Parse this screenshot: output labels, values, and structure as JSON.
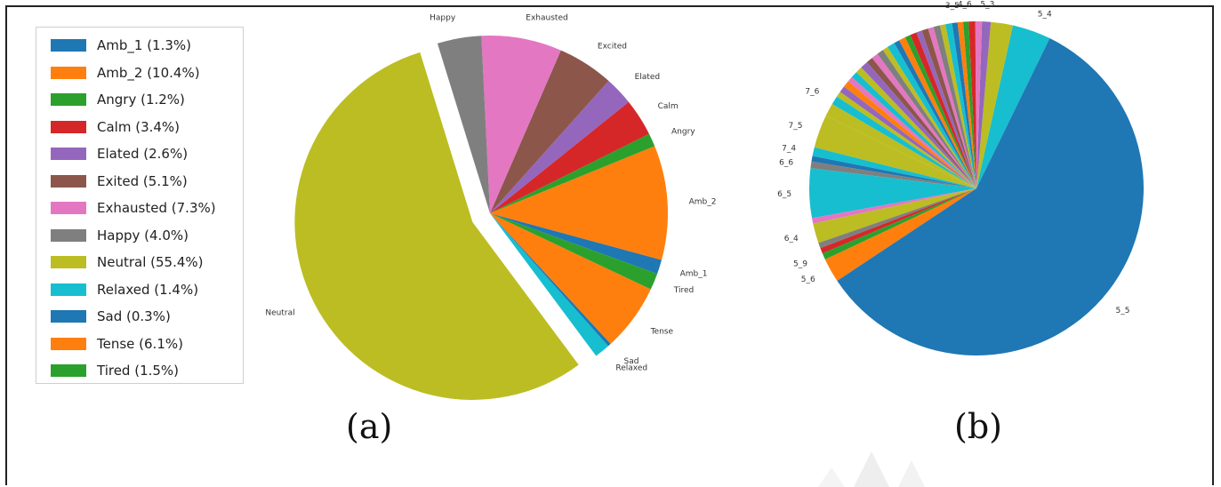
{
  "chart_data": [
    {
      "type": "pie",
      "panel_label": "(a)",
      "slices": [
        {
          "label": "Amb_1",
          "legend": "Amb_1 (1.3%)",
          "value": 1.3,
          "color": "#1f77b4"
        },
        {
          "label": "Amb_2",
          "legend": "Amb_2 (10.4%)",
          "value": 10.4,
          "color": "#ff7f0e"
        },
        {
          "label": "Angry",
          "legend": "Angry (1.2%)",
          "value": 1.2,
          "color": "#2ca02c"
        },
        {
          "label": "Calm",
          "legend": "Calm (3.4%)",
          "value": 3.4,
          "color": "#d62728"
        },
        {
          "label": "Elated",
          "legend": "Elated (2.6%)",
          "value": 2.6,
          "color": "#9467bd"
        },
        {
          "label": "Excited",
          "legend": "Exited (5.1%)",
          "value": 5.1,
          "color": "#8c564b"
        },
        {
          "label": "Exhausted",
          "legend": "Exhausted (7.3%)",
          "value": 7.3,
          "color": "#e377c2"
        },
        {
          "label": "Happy",
          "legend": "Happy (4.0%)",
          "value": 4.0,
          "color": "#7f7f7f"
        },
        {
          "label": "Neutral",
          "legend": "Neutral (55.4%)",
          "value": 55.4,
          "color": "#bcbd22",
          "exploded": true
        },
        {
          "label": "Relaxed",
          "legend": "Relaxed (1.4%)",
          "value": 1.4,
          "color": "#17becf"
        },
        {
          "label": "Sad",
          "legend": "Sad (0.3%)",
          "value": 0.3,
          "color": "#1f77b4"
        },
        {
          "label": "Tense",
          "legend": "Tense (6.1%)",
          "value": 6.1,
          "color": "#ff7f0e"
        },
        {
          "label": "Tired",
          "legend": "Tired (1.5%)",
          "value": 1.5,
          "color": "#2ca02c"
        }
      ],
      "legend_placement": "left"
    },
    {
      "type": "pie",
      "panel_label": "(b)",
      "slices": [
        {
          "label": "5_4",
          "value": 3.5,
          "color": "#17becf"
        },
        {
          "label": "",
          "value": 2.0,
          "color": "#bcbd22"
        },
        {
          "label": "5_3",
          "value": 0.8,
          "color": "#9467bd"
        },
        {
          "label": "",
          "value": 0.6,
          "color": "#e377c2"
        },
        {
          "label": "",
          "value": 0.6,
          "color": "#d62728"
        },
        {
          "label": "4_6",
          "value": 0.5,
          "color": "#2ca02c"
        },
        {
          "label": "",
          "value": 0.5,
          "color": "#ff7f0e"
        },
        {
          "label": "3_5",
          "value": 0.5,
          "color": "#1f77b4"
        },
        {
          "label": "",
          "value": 0.6,
          "color": "#17becf"
        },
        {
          "label": "",
          "value": 0.5,
          "color": "#bcbd22"
        },
        {
          "label": "",
          "value": 0.6,
          "color": "#7f7f7f"
        },
        {
          "label": "",
          "value": 0.5,
          "color": "#e377c2"
        },
        {
          "label": "",
          "value": 0.6,
          "color": "#8c564b"
        },
        {
          "label": "",
          "value": 0.5,
          "color": "#9467bd"
        },
        {
          "label": "",
          "value": 0.6,
          "color": "#d62728"
        },
        {
          "label": "",
          "value": 0.5,
          "color": "#2ca02c"
        },
        {
          "label": "",
          "value": 0.6,
          "color": "#ff7f0e"
        },
        {
          "label": "",
          "value": 0.5,
          "color": "#1f77b4"
        },
        {
          "label": "",
          "value": 0.7,
          "color": "#17becf"
        },
        {
          "label": "",
          "value": 0.5,
          "color": "#bcbd22"
        },
        {
          "label": "",
          "value": 0.6,
          "color": "#7f7f7f"
        },
        {
          "label": "",
          "value": 0.6,
          "color": "#e377c2"
        },
        {
          "label": "",
          "value": 0.6,
          "color": "#8c564b"
        },
        {
          "label": "",
          "value": 0.7,
          "color": "#9467bd"
        },
        {
          "label": "",
          "value": 0.6,
          "color": "#bcbd22"
        },
        {
          "label": "",
          "value": 0.6,
          "color": "#17becf"
        },
        {
          "label": "",
          "value": 0.5,
          "color": "#e377c2"
        },
        {
          "label": "",
          "value": 0.6,
          "color": "#ff7f0e"
        },
        {
          "label": "",
          "value": 0.6,
          "color": "#9467bd"
        },
        {
          "label": "",
          "value": 0.5,
          "color": "#bcbd22"
        },
        {
          "label": "7_6",
          "value": 0.8,
          "color": "#17becf"
        },
        {
          "label": "",
          "value": 1.2,
          "color": "#bcbd22"
        },
        {
          "label": "7_5",
          "value": 3.0,
          "color": "#bcbd22"
        },
        {
          "label": "7_4",
          "value": 0.8,
          "color": "#17becf"
        },
        {
          "label": "",
          "value": 0.5,
          "color": "#1f77b4"
        },
        {
          "label": "6_6",
          "value": 0.6,
          "color": "#7f7f7f"
        },
        {
          "label": "6_5",
          "value": 4.5,
          "color": "#17becf"
        },
        {
          "label": "",
          "value": 0.5,
          "color": "#e377c2"
        },
        {
          "label": "6_4",
          "value": 1.8,
          "color": "#bcbd22"
        },
        {
          "label": "",
          "value": 0.5,
          "color": "#7f7f7f"
        },
        {
          "label": "",
          "value": 0.5,
          "color": "#d62728"
        },
        {
          "label": "5_9",
          "value": 0.6,
          "color": "#2ca02c"
        },
        {
          "label": "5_6",
          "value": 2.2,
          "color": "#ff7f0e"
        },
        {
          "label": "5_5",
          "value": 55.0,
          "color": "#1f77b4"
        }
      ]
    }
  ]
}
